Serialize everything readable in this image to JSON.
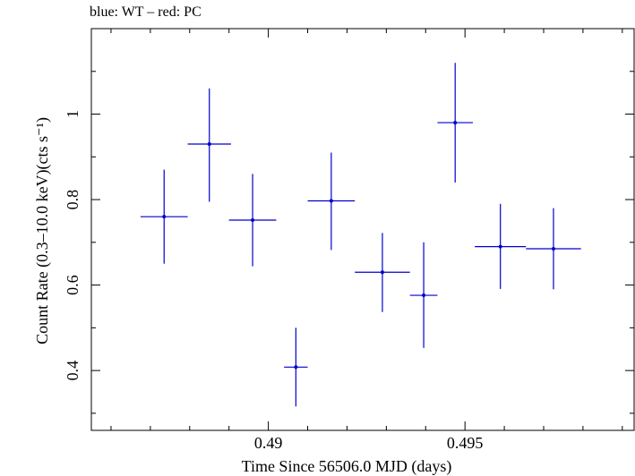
{
  "chart_data": {
    "type": "scatter",
    "title": "blue: WT – red: PC",
    "xlabel": "Time Since 56506.0 MJD (days)",
    "ylabel": "Count Rate (0.3–10.0 keV)(cts s⁻¹)",
    "xlim": [
      0.4855,
      0.4993
    ],
    "ylim": [
      0.26,
      1.2
    ],
    "x_ticks": [
      0.49,
      0.495
    ],
    "x_tick_labels": [
      "0.49",
      "0.495"
    ],
    "y_ticks": [
      0.4,
      0.6,
      0.8,
      1.0
    ],
    "y_tick_labels": [
      "0.4",
      "0.6",
      "0.8",
      "1"
    ],
    "grid": false,
    "series": [
      {
        "name": "WT",
        "color": "#0000cc",
        "points": [
          {
            "x": 0.48735,
            "xerr": 0.0006,
            "y": 0.76,
            "yerr_low": 0.11,
            "yerr_high": 0.11
          },
          {
            "x": 0.4885,
            "xerr": 0.00055,
            "y": 0.93,
            "yerr_low": 0.135,
            "yerr_high": 0.13
          },
          {
            "x": 0.4896,
            "xerr": 0.0006,
            "y": 0.752,
            "yerr_low": 0.108,
            "yerr_high": 0.108
          },
          {
            "x": 0.4907,
            "xerr": 0.0003,
            "y": 0.408,
            "yerr_low": 0.092,
            "yerr_high": 0.092
          },
          {
            "x": 0.4916,
            "xerr": 0.0006,
            "y": 0.797,
            "yerr_low": 0.115,
            "yerr_high": 0.113
          },
          {
            "x": 0.4929,
            "xerr": 0.0007,
            "y": 0.63,
            "yerr_low": 0.093,
            "yerr_high": 0.092
          },
          {
            "x": 0.49395,
            "xerr": 0.00035,
            "y": 0.576,
            "yerr_low": 0.123,
            "yerr_high": 0.124
          },
          {
            "x": 0.49475,
            "xerr": 0.00045,
            "y": 0.98,
            "yerr_low": 0.14,
            "yerr_high": 0.14
          },
          {
            "x": 0.4959,
            "xerr": 0.00065,
            "y": 0.69,
            "yerr_low": 0.099,
            "yerr_high": 0.1
          },
          {
            "x": 0.49725,
            "xerr": 0.0007,
            "y": 0.685,
            "yerr_low": 0.095,
            "yerr_high": 0.095
          }
        ]
      }
    ]
  }
}
